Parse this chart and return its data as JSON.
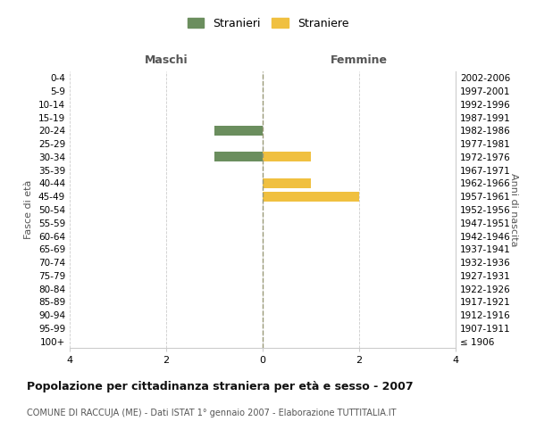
{
  "age_groups": [
    "100+",
    "95-99",
    "90-94",
    "85-89",
    "80-84",
    "75-79",
    "70-74",
    "65-69",
    "60-64",
    "55-59",
    "50-54",
    "45-49",
    "40-44",
    "35-39",
    "30-34",
    "25-29",
    "20-24",
    "15-19",
    "10-14",
    "5-9",
    "0-4"
  ],
  "birth_years": [
    "≤ 1906",
    "1907-1911",
    "1912-1916",
    "1917-1921",
    "1922-1926",
    "1927-1931",
    "1932-1936",
    "1937-1941",
    "1942-1946",
    "1947-1951",
    "1952-1956",
    "1957-1961",
    "1962-1966",
    "1967-1971",
    "1972-1976",
    "1977-1981",
    "1982-1986",
    "1987-1991",
    "1992-1996",
    "1997-2001",
    "2002-2006"
  ],
  "maschi_stranieri": [
    0,
    0,
    0,
    0,
    0,
    0,
    0,
    0,
    0,
    0,
    0,
    0,
    0,
    0,
    -1,
    0,
    -1,
    0,
    0,
    0,
    0
  ],
  "femmine_straniere": [
    0,
    0,
    0,
    0,
    0,
    0,
    0,
    0,
    0,
    0,
    0,
    2,
    1,
    0,
    1,
    0,
    0,
    0,
    0,
    0,
    0
  ],
  "color_maschi": "#6b8e5e",
  "color_femmine": "#f0c040",
  "title": "Popolazione per cittadinanza straniera per età e sesso - 2007",
  "subtitle": "COMUNE DI RACCUJA (ME) - Dati ISTAT 1° gennaio 2007 - Elaborazione TUTTITALIA.IT",
  "ylabel_left": "Fasce di età",
  "ylabel_right": "Anni di nascita",
  "xlabel_left": "Maschi",
  "xlabel_right": "Femmine",
  "legend_stranieri": "Stranieri",
  "legend_straniere": "Straniere",
  "xlim": 4,
  "background_color": "#ffffff",
  "grid_color": "#cccccc",
  "figsize": [
    6.0,
    5.0
  ],
  "dpi": 100
}
